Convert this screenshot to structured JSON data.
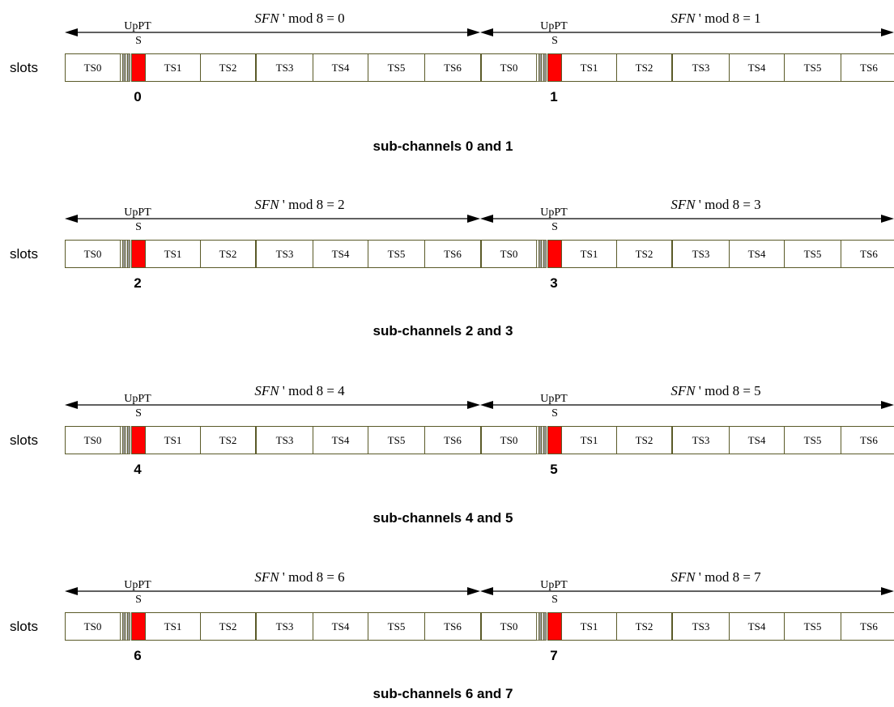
{
  "row_label": "slots",
  "upp_label": "UpPTS",
  "timeslots": [
    "TS0",
    "TS1",
    "TS2",
    "TS3",
    "TS4",
    "TS5",
    "TS6"
  ],
  "rows": [
    {
      "caption": "sub-channels 0 and 1",
      "frames": [
        {
          "sfn_var": "SFN",
          "sfn_rest": "' mod 8 = 0",
          "subchannel": "0"
        },
        {
          "sfn_var": "SFN",
          "sfn_rest": "' mod 8 = 1",
          "subchannel": "1"
        }
      ]
    },
    {
      "caption": "sub-channels 2 and 3",
      "frames": [
        {
          "sfn_var": "SFN",
          "sfn_rest": "' mod 8 = 2",
          "subchannel": "2"
        },
        {
          "sfn_var": "SFN",
          "sfn_rest": "' mod 8 = 3",
          "subchannel": "3"
        }
      ]
    },
    {
      "caption": "sub-channels 4 and 5",
      "frames": [
        {
          "sfn_var": "SFN",
          "sfn_rest": "' mod 8 = 4",
          "subchannel": "4"
        },
        {
          "sfn_var": "SFN",
          "sfn_rest": "' mod 8 = 5",
          "subchannel": "5"
        }
      ]
    },
    {
      "caption": "sub-channels 6 and 7",
      "frames": [
        {
          "sfn_var": "SFN",
          "sfn_rest": "' mod 8 = 6",
          "subchannel": "6"
        },
        {
          "sfn_var": "SFN",
          "sfn_rest": "' mod 8 = 7",
          "subchannel": "7"
        }
      ]
    }
  ],
  "colors": {
    "slot_border": "#5a5a28",
    "slot_fill": "#ffffff",
    "guard_fill": "#9a9a9a",
    "uppts_fill": "#ff0000",
    "arrow": "#000000"
  }
}
